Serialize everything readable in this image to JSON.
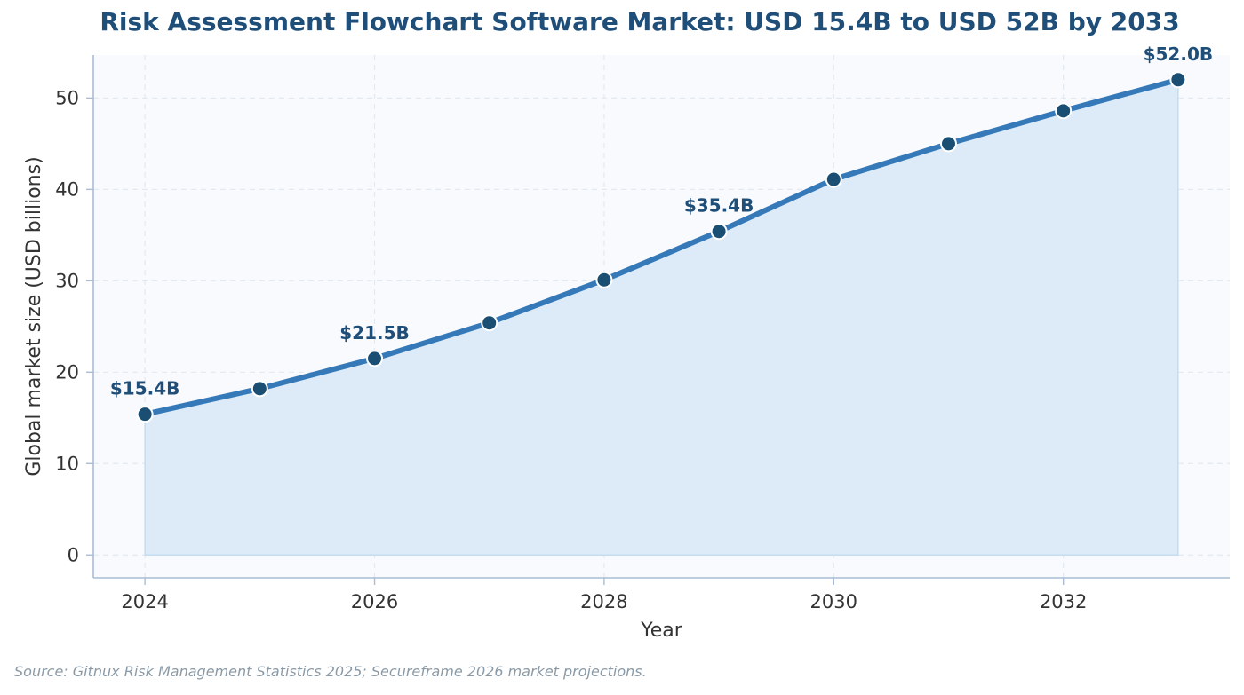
{
  "chart_data": {
    "type": "line",
    "title": "Risk Assessment Flowchart Software Market: USD 15.4B to USD 52B by 2033",
    "xlabel": "Year",
    "ylabel": "Global market size (USD billions)",
    "x": [
      2024,
      2025,
      2026,
      2027,
      2028,
      2029,
      2030,
      2031,
      2032,
      2033
    ],
    "series": [
      {
        "values": [
          15.4,
          18.2,
          21.5,
          25.4,
          30.1,
          35.4,
          41.1,
          45.0,
          48.6,
          52.0
        ]
      }
    ],
    "x_ticks": [
      "2024",
      "2026",
      "2028",
      "2030",
      "2032"
    ],
    "y_ticks": [
      "0",
      "10",
      "20",
      "30",
      "40",
      "50"
    ],
    "xlim": [
      2023.55,
      2033.45
    ],
    "ylim": [
      -2.5,
      54.7
    ],
    "annotations": [
      {
        "x": 2024,
        "y": 15.4,
        "text": "$15.4B"
      },
      {
        "x": 2026,
        "y": 21.5,
        "text": "$21.5B"
      },
      {
        "x": 2029,
        "y": 35.4,
        "text": "$35.4B"
      },
      {
        "x": 2033,
        "y": 52.0,
        "text": "$52.0B"
      }
    ],
    "grid": true,
    "area_fill": true,
    "colors": {
      "line": "#3579b9",
      "marker": "#1a4e73",
      "fill": "#dcebf7",
      "plot_background": "#f8fafd",
      "axis": "#a8bdd4",
      "grid": "#e3e9f1"
    },
    "source": "Source: Gitnux Risk Management Statistics 2025; Secureframe 2026 market projections."
  }
}
